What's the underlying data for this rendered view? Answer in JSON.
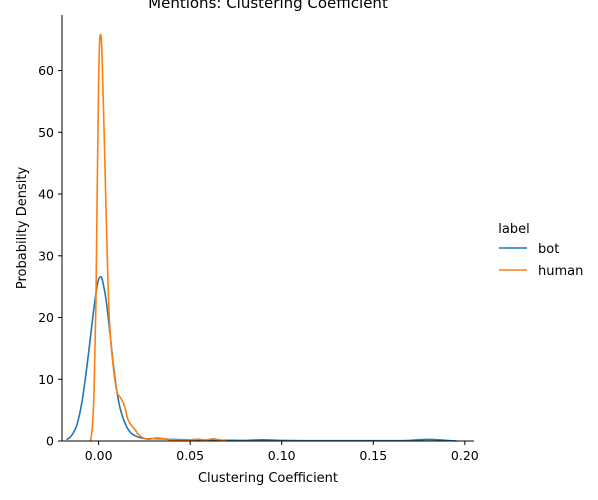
{
  "chart_data": {
    "type": "line",
    "title": "Mentions: Clustering Coefficient",
    "xlabel": "Clustering Coefficient",
    "ylabel": "Probability Density",
    "xlim": [
      -0.02,
      0.205
    ],
    "ylim": [
      0,
      69
    ],
    "xticks": [
      0.0,
      0.05,
      0.1,
      0.15,
      0.2
    ],
    "xtick_labels": [
      "0.00",
      "0.05",
      "0.10",
      "0.15",
      "0.20"
    ],
    "yticks": [
      0,
      10,
      20,
      30,
      40,
      50,
      60
    ],
    "ytick_labels": [
      "0",
      "10",
      "20",
      "30",
      "40",
      "50",
      "60"
    ],
    "grid": false,
    "legend": {
      "title": "label",
      "placement": "right"
    },
    "series": [
      {
        "name": "bot",
        "color": "#1f77b4",
        "x": [
          -0.0175,
          -0.015,
          -0.012,
          -0.009,
          -0.006,
          -0.003,
          -0.001,
          0.0,
          0.001,
          0.002,
          0.004,
          0.006,
          0.008,
          0.01,
          0.012,
          0.015,
          0.018,
          0.022,
          0.026,
          0.03,
          0.035,
          0.04,
          0.05,
          0.06,
          0.07,
          0.08,
          0.09,
          0.1,
          0.12,
          0.14,
          0.16,
          0.17,
          0.18,
          0.19,
          0.1955
        ],
        "y": [
          0.2,
          0.8,
          2.5,
          6.5,
          13.0,
          20.5,
          24.8,
          26.2,
          26.6,
          26.1,
          23.0,
          18.0,
          12.5,
          8.0,
          5.0,
          2.5,
          1.2,
          0.6,
          0.35,
          0.4,
          0.35,
          0.25,
          0.2,
          0.15,
          0.12,
          0.1,
          0.2,
          0.1,
          0.05,
          0.05,
          0.05,
          0.1,
          0.25,
          0.1,
          0.0
        ]
      },
      {
        "name": "human",
        "color": "#ff7f0e",
        "x": [
          -0.0045,
          -0.0035,
          -0.0025,
          -0.0015,
          -0.0008,
          0.0,
          0.0005,
          0.001,
          0.0015,
          0.002,
          0.003,
          0.004,
          0.005,
          0.006,
          0.008,
          0.01,
          0.012,
          0.014,
          0.016,
          0.018,
          0.02,
          0.022,
          0.025,
          0.028,
          0.032,
          0.036,
          0.04,
          0.045,
          0.05,
          0.055,
          0.058,
          0.062,
          0.066,
          0.07
        ],
        "y": [
          0.0,
          2.0,
          8.0,
          22.0,
          40.0,
          58.0,
          64.5,
          65.8,
          65.0,
          61.0,
          50.0,
          38.0,
          27.0,
          19.0,
          12.0,
          8.0,
          7.0,
          5.8,
          3.5,
          2.5,
          1.8,
          1.0,
          0.4,
          0.3,
          0.5,
          0.35,
          0.2,
          0.15,
          0.2,
          0.3,
          0.1,
          0.35,
          0.2,
          0.0
        ]
      }
    ]
  }
}
